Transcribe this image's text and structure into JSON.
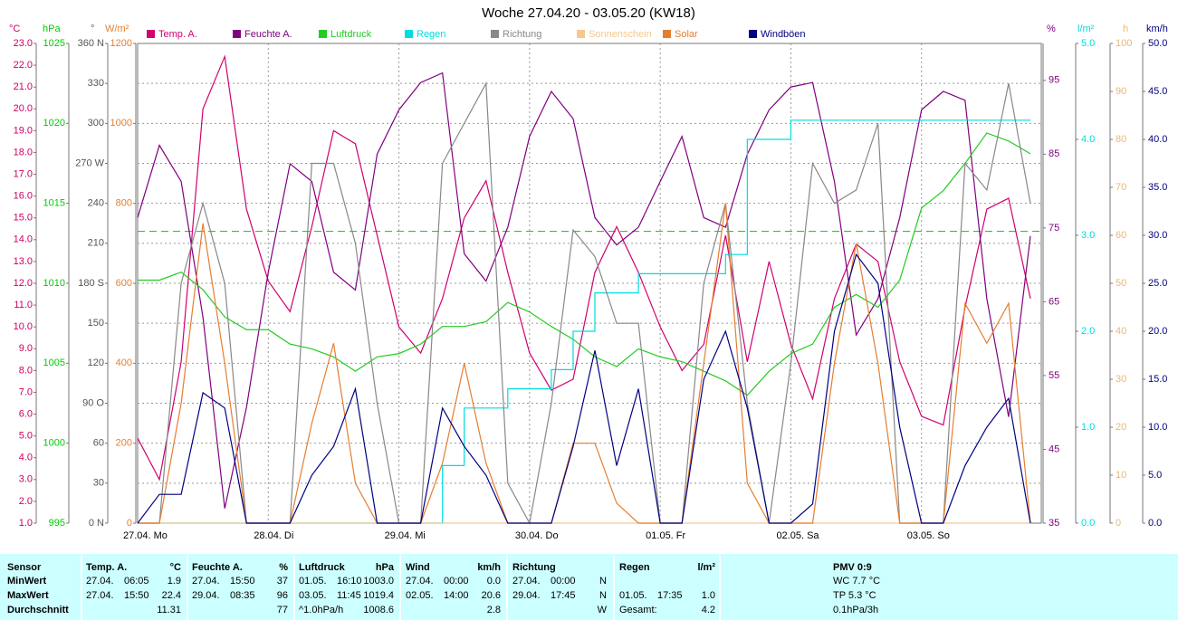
{
  "chart_data": {
    "type": "line",
    "title": "Woche 27.04.20 - 03.05.20 (KW18)",
    "x": [
      0,
      4,
      8,
      12,
      16,
      20,
      24,
      28,
      32,
      36,
      40,
      44,
      48,
      52,
      56,
      60,
      64,
      68,
      72,
      76,
      80,
      84,
      88,
      92,
      96,
      100,
      104,
      108,
      112,
      116,
      120,
      124,
      128,
      132,
      136,
      140,
      144,
      148,
      152,
      156,
      160,
      164
    ],
    "xlim": [
      0,
      166
    ],
    "xticks": [
      {
        "value": 0,
        "label": "27.04. Mo"
      },
      {
        "value": 24,
        "label": "28.04. Di"
      },
      {
        "value": 48,
        "label": "29.04. Mi"
      },
      {
        "value": 72,
        "label": "30.04. Do"
      },
      {
        "value": 96,
        "label": "01.05. Fr"
      },
      {
        "value": 120,
        "label": "02.05. Sa"
      },
      {
        "value": 144,
        "label": "03.05. So"
      }
    ],
    "grid": true,
    "grid_axis": "direction",
    "reference_line": {
      "axis": "pressure",
      "value": 1013.25,
      "color": "#00cc00"
    },
    "axes": [
      {
        "id": "temp",
        "side": "left",
        "label": "°C",
        "color": "#cc0066",
        "lim": [
          1,
          23
        ],
        "ticks": [
          {
            "value": 1,
            "label": "1.0"
          },
          {
            "value": 2,
            "label": "2.0"
          },
          {
            "value": 3,
            "label": "3.0"
          },
          {
            "value": 4,
            "label": "4.0"
          },
          {
            "value": 5,
            "label": "5.0"
          },
          {
            "value": 6,
            "label": "6.0"
          },
          {
            "value": 7,
            "label": "7.0"
          },
          {
            "value": 8,
            "label": "8.0"
          },
          {
            "value": 9,
            "label": "9.0"
          },
          {
            "value": 10,
            "label": "10.0"
          },
          {
            "value": 11,
            "label": "11.0"
          },
          {
            "value": 12,
            "label": "12.0"
          },
          {
            "value": 13,
            "label": "13.0"
          },
          {
            "value": 14,
            "label": "14.0"
          },
          {
            "value": 15,
            "label": "15.0"
          },
          {
            "value": 16,
            "label": "16.0"
          },
          {
            "value": 17,
            "label": "17.0"
          },
          {
            "value": 18,
            "label": "18.0"
          },
          {
            "value": 19,
            "label": "19.0"
          },
          {
            "value": 20,
            "label": "20.0"
          },
          {
            "value": 21,
            "label": "21.0"
          },
          {
            "value": 22,
            "label": "22.0"
          },
          {
            "value": 23,
            "label": "23.0"
          }
        ]
      },
      {
        "id": "pressure",
        "side": "left",
        "label": "hPa",
        "color": "#00cc00",
        "lim": [
          995,
          1025
        ],
        "ticks": [
          995,
          1000,
          1005,
          1010,
          1015,
          1020,
          1025
        ]
      },
      {
        "id": "direction",
        "side": "left",
        "label": "°",
        "color": "#555555",
        "lim": [
          0,
          360
        ],
        "ticks": [
          {
            "value": 0,
            "label": "0 N"
          },
          30,
          60,
          {
            "value": 90,
            "label": "90 O"
          },
          120,
          150,
          {
            "value": 180,
            "label": "180 S"
          },
          210,
          240,
          {
            "value": 270,
            "label": "270 W"
          },
          300,
          330,
          {
            "value": 360,
            "label": "360 N"
          }
        ]
      },
      {
        "id": "solar",
        "side": "left",
        "label": "W/m²",
        "color": "#e67e30",
        "lim": [
          0,
          1200
        ],
        "ticks": [
          0,
          200,
          400,
          600,
          800,
          1000,
          1200
        ]
      },
      {
        "id": "humidity",
        "side": "right",
        "label": "%",
        "color": "#800080",
        "lim": [
          35,
          100
        ],
        "ticks": [
          35,
          45,
          55,
          65,
          75,
          85,
          95
        ]
      },
      {
        "id": "rain",
        "side": "right",
        "label": "l/m²",
        "color": "#00dddd",
        "lim": [
          0,
          5
        ],
        "ticks": [
          {
            "value": 0,
            "label": "0.0"
          },
          {
            "value": 1,
            "label": "1.0"
          },
          {
            "value": 2,
            "label": "2.0"
          },
          {
            "value": 3,
            "label": "3.0"
          },
          {
            "value": 4,
            "label": "4.0"
          },
          {
            "value": 5,
            "label": "5.0"
          }
        ]
      },
      {
        "id": "sun",
        "side": "right",
        "label": "h",
        "color": "#e8b878",
        "lim": [
          0,
          100
        ],
        "ticks": [
          0,
          10,
          20,
          30,
          40,
          50,
          60,
          70,
          80,
          90,
          100
        ]
      },
      {
        "id": "wind",
        "side": "right",
        "label": "km/h",
        "color": "#000080",
        "lim": [
          0,
          50
        ],
        "ticks": [
          {
            "value": 0,
            "label": "0.0"
          },
          {
            "value": 5,
            "label": "5.0"
          },
          {
            "value": 10,
            "label": "10.0"
          },
          {
            "value": 15,
            "label": "15.0"
          },
          {
            "value": 20,
            "label": "20.0"
          },
          {
            "value": 25,
            "label": "25.0"
          },
          {
            "value": 30,
            "label": "30.0"
          },
          {
            "value": 35,
            "label": "35.0"
          },
          {
            "value": 40,
            "label": "40.0"
          },
          {
            "value": 45,
            "label": "45.0"
          },
          {
            "value": 50,
            "label": "50.0"
          }
        ]
      }
    ],
    "series": [
      {
        "name": "Temp. A.",
        "color": "#d0006f",
        "axis": "temp",
        "values": [
          4.9,
          3.0,
          8.4,
          20.0,
          22.4,
          15.4,
          12.1,
          10.7,
          14.6,
          19.0,
          18.4,
          14.2,
          10.0,
          8.8,
          11.3,
          15.0,
          16.7,
          12.5,
          8.8,
          7.1,
          7.6,
          12.5,
          14.6,
          12.5,
          10.0,
          8.0,
          9.2,
          14.2,
          8.4,
          13.0,
          9.2,
          6.7,
          11.3,
          13.8,
          13.0,
          8.4,
          5.9,
          5.5,
          10.9,
          15.4,
          15.9,
          11.3
        ]
      },
      {
        "name": "Feuchte A.",
        "color": "#800080",
        "axis": "humidity",
        "values": [
          76.4,
          86.2,
          81.3,
          62.9,
          37,
          50.7,
          69,
          83.7,
          81.3,
          69,
          66.6,
          85,
          91,
          94.7,
          96,
          71.5,
          67.8,
          75.1,
          87.4,
          93.5,
          89.8,
          76.4,
          72.7,
          75.1,
          81.3,
          87.4,
          76.4,
          75.1,
          85,
          91,
          94.1,
          94.7,
          81.3,
          60.5,
          65.4,
          76.4,
          91,
          93.5,
          92.3,
          65.4,
          49.4,
          73.9
        ]
      },
      {
        "name": "Luftdruck",
        "color": "#22cc22",
        "axis": "pressure",
        "values": [
          1010.2,
          1010.2,
          1010.7,
          1009.6,
          1007.9,
          1007.1,
          1007.1,
          1006.2,
          1005.9,
          1005.4,
          1004.5,
          1005.4,
          1005.6,
          1006.2,
          1007.3,
          1007.3,
          1007.6,
          1008.8,
          1008.2,
          1007.3,
          1006.5,
          1005.4,
          1004.8,
          1005.9,
          1005.4,
          1005.1,
          1004.5,
          1003.9,
          1003.0,
          1004.5,
          1005.6,
          1006.2,
          1008.5,
          1009.3,
          1008.5,
          1010.2,
          1014.7,
          1015.8,
          1017.5,
          1019.4,
          1018.9,
          1018.1
        ]
      },
      {
        "name": "Regen",
        "color": "#00dddd",
        "axis": "rain",
        "step": true,
        "values": [
          0,
          0,
          0,
          0,
          0,
          0,
          0,
          0,
          0,
          0,
          0,
          0,
          0,
          0,
          0.6,
          1.2,
          1.2,
          1.4,
          1.4,
          1.6,
          2.0,
          2.4,
          2.4,
          2.6,
          2.6,
          2.6,
          2.6,
          2.8,
          4.0,
          4.0,
          4.2,
          4.2,
          4.2,
          4.2,
          4.2,
          4.2,
          4.2,
          4.2,
          4.2,
          4.2,
          4.2,
          4.2
        ]
      },
      {
        "name": "Richtung",
        "color": "#888888",
        "axis": "direction",
        "values": [
          0,
          0,
          180,
          240,
          180,
          0,
          0,
          0,
          270,
          270,
          210,
          90,
          0,
          0,
          270,
          300,
          330,
          30,
          0,
          90,
          220,
          200,
          150,
          150,
          0,
          0,
          180,
          240,
          90,
          0,
          120,
          270,
          240,
          250,
          300,
          0,
          0,
          0,
          270,
          250,
          330,
          240
        ]
      },
      {
        "name": "Sonnenschein",
        "color": "#f5c88c",
        "axis": "sun",
        "values": [
          0,
          0,
          0,
          0,
          0,
          0,
          0,
          0,
          0,
          0,
          0,
          0,
          0,
          0,
          0,
          0,
          0,
          0,
          0,
          0,
          0,
          0,
          0,
          0,
          0,
          0,
          0,
          0,
          0,
          0,
          0,
          0,
          0,
          0,
          0,
          0,
          0,
          0,
          0,
          0,
          0,
          0
        ]
      },
      {
        "name": "Solar",
        "color": "#e67e30",
        "axis": "solar",
        "values": [
          0,
          0,
          300,
          750,
          400,
          0,
          0,
          0,
          250,
          450,
          100,
          0,
          0,
          0,
          150,
          400,
          150,
          0,
          0,
          0,
          200,
          200,
          50,
          0,
          0,
          0,
          400,
          800,
          100,
          0,
          0,
          0,
          400,
          700,
          400,
          0,
          0,
          0,
          550,
          450,
          550,
          0
        ]
      },
      {
        "name": "Windböen",
        "color": "#000080",
        "axis": "wind",
        "values": [
          0,
          3,
          3,
          13.6,
          12,
          0,
          0,
          0,
          5,
          8,
          14,
          0,
          0,
          0,
          12,
          8,
          5,
          0,
          0,
          0,
          8,
          18,
          6,
          14,
          0,
          0,
          15,
          20,
          12,
          0,
          0,
          2,
          20,
          28,
          25,
          10,
          0,
          0,
          6,
          10,
          13,
          0
        ]
      }
    ]
  },
  "stats": {
    "headers": [
      [
        "Sensor"
      ],
      [
        "Temp. A.",
        "°C"
      ],
      [
        "Feuchte A.",
        "%"
      ],
      [
        "Luftdruck",
        "hPa"
      ],
      [
        "Wind",
        "km/h"
      ],
      [
        "Richtung"
      ],
      [
        "Regen",
        "l/m²"
      ],
      [
        "PMV 0:9"
      ]
    ],
    "rows": [
      [
        "MinWert",
        [
          "27.04.",
          "06:05",
          "1.9"
        ],
        [
          "27.04.",
          "15:50",
          "37"
        ],
        [
          "01.05.",
          "16:10",
          "1003.0"
        ],
        [
          "27.04.",
          "00:00",
          "0.0"
        ],
        [
          "27.04.",
          "00:00",
          "N"
        ],
        [],
        [
          "WC 7.7 °C"
        ]
      ],
      [
        "MaxWert",
        [
          "27.04.",
          "15:50",
          "22.4"
        ],
        [
          "29.04.",
          "08:35",
          "96"
        ],
        [
          "03.05.",
          "11:45",
          "1019.4"
        ],
        [
          "02.05.",
          "14:00",
          "20.6"
        ],
        [
          "29.04.",
          "17:45",
          "N"
        ],
        [
          "01.05.",
          "17:35",
          "1.0"
        ],
        [
          "TP 5.3 °C"
        ]
      ],
      [
        "Durchschnitt",
        [
          "11.31"
        ],
        [
          "77"
        ],
        [
          "^1.0hPa/h",
          "1008.6"
        ],
        [
          "2.8"
        ],
        [
          "W"
        ],
        [
          "Gesamt:",
          "4.2"
        ],
        [
          "0.1hPa/3h"
        ]
      ]
    ]
  }
}
